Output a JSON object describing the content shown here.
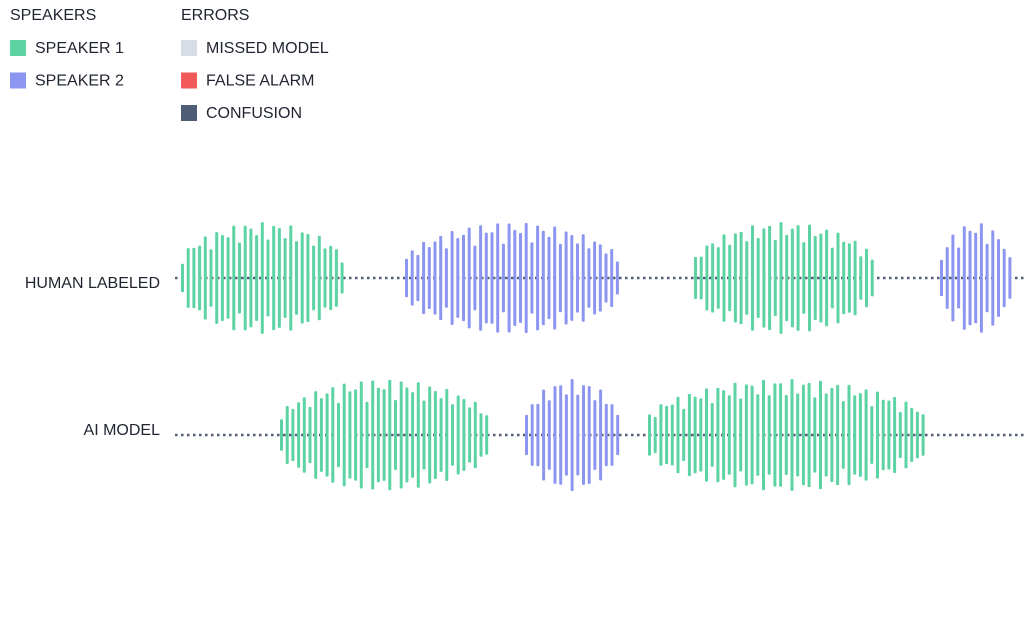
{
  "legend": {
    "speakers": {
      "title": "SPEAKERS",
      "items": [
        {
          "label": "SPEAKER 1",
          "color": "#5dd3a4"
        },
        {
          "label": "SPEAKER 2",
          "color": "#8c96f0"
        }
      ]
    },
    "errors": {
      "title": "ERRORS",
      "items": [
        {
          "label": "MISSED MODEL",
          "color": "#d6dde6"
        },
        {
          "label": "FALSE ALARM",
          "color": "#f25a5a"
        },
        {
          "label": "CONFUSION",
          "color": "#4f5e76"
        }
      ]
    }
  },
  "rows": [
    {
      "label": "HUMAN LABELED"
    },
    {
      "label": "AI MODEL"
    }
  ]
}
